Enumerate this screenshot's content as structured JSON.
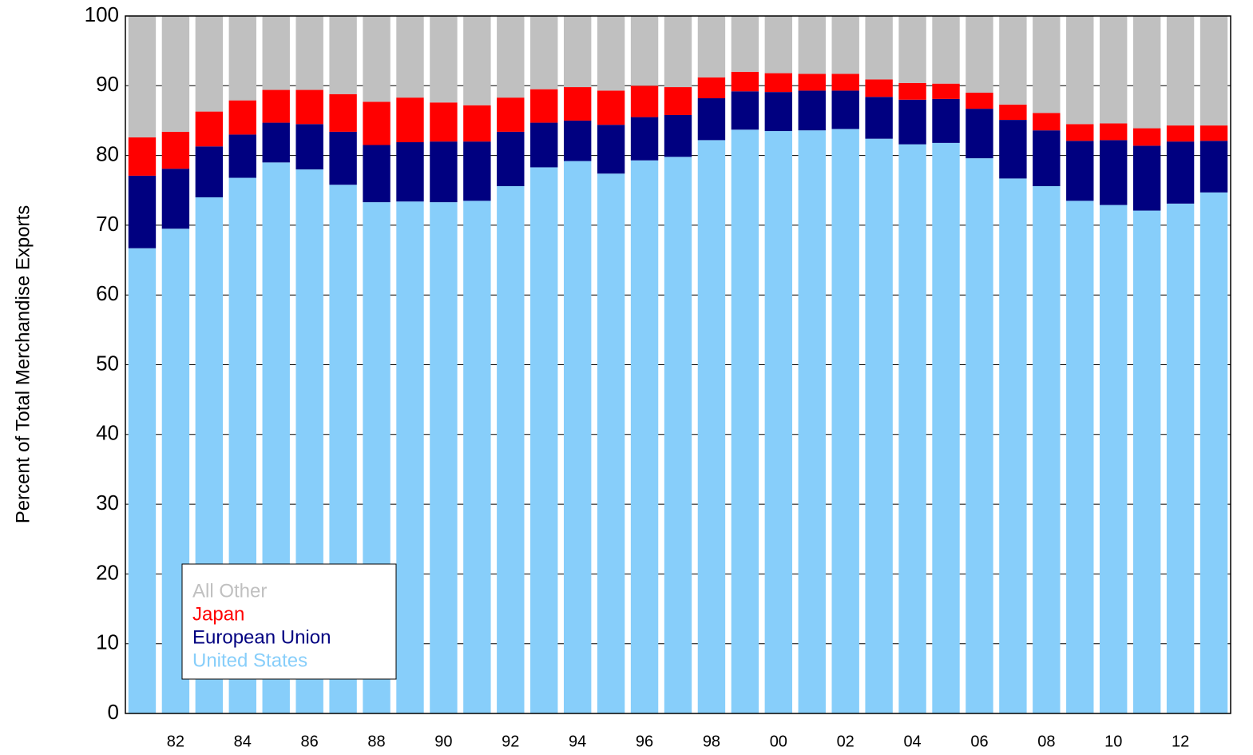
{
  "chart_data": {
    "type": "stacked_bar",
    "y_label": "Percent of Total Merchandise Exports",
    "categories": [
      null,
      "82",
      null,
      "84",
      null,
      "86",
      null,
      "88",
      null,
      "90",
      null,
      "92",
      null,
      "94",
      null,
      "96",
      null,
      "98",
      null,
      "00",
      null,
      "02",
      null,
      "04",
      null,
      "06",
      null,
      "08",
      null,
      "10",
      null,
      "12",
      null
    ],
    "series": [
      {
        "name": "United States",
        "color": "#87cefa",
        "values": [
          66.7,
          69.5,
          74.0,
          76.8,
          79.0,
          78.0,
          75.8,
          73.3,
          73.4,
          73.3,
          73.5,
          75.6,
          78.3,
          79.2,
          77.4,
          79.3,
          79.8,
          82.2,
          83.7,
          83.5,
          83.6,
          83.8,
          82.4,
          81.6,
          81.8,
          79.6,
          76.7,
          75.6,
          73.5,
          72.9,
          72.1,
          73.1,
          74.7
        ]
      },
      {
        "name": "European Union",
        "color": "#000080",
        "values": [
          10.4,
          8.6,
          7.3,
          6.2,
          5.7,
          6.5,
          7.6,
          8.2,
          8.5,
          8.7,
          8.5,
          7.8,
          6.4,
          5.8,
          7.0,
          6.2,
          6.0,
          6.0,
          5.5,
          5.6,
          5.7,
          5.5,
          6.0,
          6.4,
          6.3,
          7.1,
          8.4,
          8.0,
          8.6,
          9.3,
          9.3,
          8.9,
          7.4
        ]
      },
      {
        "name": "Japan",
        "color": "#ff0000",
        "values": [
          5.5,
          5.3,
          5.0,
          4.9,
          4.7,
          4.9,
          5.4,
          6.2,
          6.4,
          5.6,
          5.2,
          4.9,
          4.8,
          4.8,
          4.9,
          4.5,
          4.0,
          3.0,
          2.8,
          2.7,
          2.4,
          2.4,
          2.5,
          2.4,
          2.2,
          2.3,
          2.2,
          2.5,
          2.4,
          2.4,
          2.5,
          2.3,
          2.2
        ]
      },
      {
        "name": "All Other",
        "color": "#c0c0c0",
        "values": [
          17.4,
          16.6,
          13.7,
          12.1,
          10.6,
          10.6,
          11.2,
          12.3,
          11.7,
          12.4,
          12.8,
          11.7,
          10.5,
          10.2,
          10.7,
          10.0,
          10.2,
          8.8,
          8.0,
          8.2,
          8.3,
          8.3,
          9.1,
          9.6,
          9.7,
          11.0,
          12.7,
          13.9,
          15.5,
          15.4,
          16.1,
          15.7,
          15.7
        ]
      }
    ],
    "ylim": [
      0,
      100
    ],
    "yticks": [
      0,
      10,
      20,
      30,
      40,
      50,
      60,
      70,
      80,
      90,
      100
    ],
    "grid": true,
    "legend": "lower left"
  }
}
